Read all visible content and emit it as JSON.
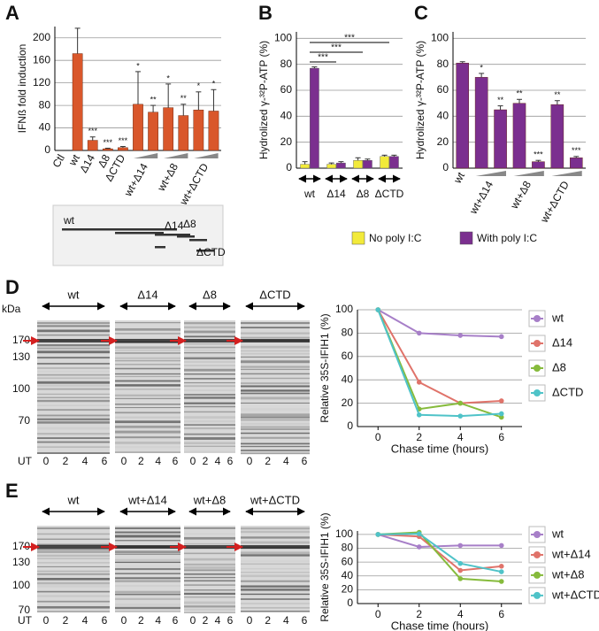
{
  "chart_data": [
    {
      "type": "bar",
      "panel": "A",
      "ylabel": "IFNß fold induction",
      "categories": [
        "Ctl",
        "wt",
        "Δ14",
        "Δ8",
        "ΔCTD",
        "wt+Δ14",
        null,
        "wt+Δ8",
        null,
        "wt+ΔCTD",
        null
      ],
      "values": [
        0,
        172,
        18,
        3,
        5,
        82,
        68,
        76,
        62,
        72,
        70
      ],
      "errors": [
        null,
        45,
        6,
        1,
        2,
        58,
        12,
        42,
        20,
        32,
        38
      ],
      "annotations": [
        null,
        null,
        "***",
        "***",
        "***",
        "*",
        "**",
        "*",
        "**",
        "*",
        "*"
      ],
      "color": "#d9572b",
      "ylim": [
        0,
        220
      ],
      "yticks": [
        0,
        40,
        80,
        120,
        160,
        200
      ],
      "grid": true
    },
    {
      "type": "grouped_bar",
      "panel": "B",
      "ylabel": "Hydrolized γ-³²P-ATP (%)",
      "categories": [
        "wt",
        "Δ14",
        "Δ8",
        "ΔCTD"
      ],
      "series": [
        {
          "name": "No poly I:C",
          "color": "#f2ea3a",
          "values": [
            3,
            3,
            6,
            9
          ],
          "errors": [
            2,
            1,
            2,
            1
          ]
        },
        {
          "name": "With poly I:C",
          "color": "#7b2f8f",
          "values": [
            77,
            4,
            6,
            9
          ],
          "errors": [
            1,
            1,
            1,
            1
          ]
        }
      ],
      "significance": [
        "***",
        "***",
        "***"
      ],
      "ylim": [
        0,
        105
      ],
      "yticks": [
        0,
        20,
        40,
        60,
        80,
        100
      ],
      "grid": true
    },
    {
      "type": "bar",
      "panel": "C",
      "ylabel": "Hydrolized γ-³²P-ATP (%)",
      "categories": [
        "wt",
        "wt+Δ14",
        null,
        "wt+Δ8",
        null,
        "wt+ΔCTD",
        null
      ],
      "values": [
        81,
        70,
        45,
        50,
        5,
        49,
        8
      ],
      "errors": [
        1,
        3,
        3,
        3,
        1,
        3,
        1
      ],
      "annotations": [
        null,
        "*",
        "**",
        "**",
        "***",
        "**",
        "***"
      ],
      "color": "#7b2f8f",
      "ylim": [
        0,
        105
      ],
      "yticks": [
        0,
        20,
        40,
        60,
        80,
        100
      ],
      "grid": true
    },
    {
      "type": "line",
      "panel": "D",
      "ylabel": "Relative 35S-IFIH1 (%)",
      "xlabel": "Chase time (hours)",
      "x": [
        0,
        2,
        4,
        6
      ],
      "series": [
        {
          "name": "wt",
          "color": "#a77fc8",
          "values": [
            100,
            80,
            78,
            77
          ]
        },
        {
          "name": "Δ14",
          "color": "#e0736a",
          "values": [
            100,
            38,
            20,
            22
          ]
        },
        {
          "name": "Δ8",
          "color": "#86bb3c",
          "values": [
            100,
            15,
            20,
            8
          ]
        },
        {
          "name": "ΔCTD",
          "color": "#4fc3c8",
          "values": [
            100,
            10,
            9,
            11
          ]
        }
      ],
      "xlim": [
        -1,
        7
      ],
      "xticks": [
        0,
        2,
        4,
        6
      ],
      "ylim": [
        0,
        100
      ],
      "yticks": [
        0,
        20,
        40,
        60,
        80,
        100
      ],
      "grid": true
    },
    {
      "type": "line",
      "panel": "E",
      "ylabel": "Relative 35S-IFIH1 (%)",
      "xlabel": "Chase time (hours)",
      "x": [
        0,
        2,
        4,
        6
      ],
      "series": [
        {
          "name": "wt",
          "color": "#a77fc8",
          "values": [
            100,
            82,
            84,
            84
          ]
        },
        {
          "name": "wt+Δ14",
          "color": "#e0736a",
          "values": [
            100,
            97,
            48,
            54
          ]
        },
        {
          "name": "wt+Δ8",
          "color": "#86bb3c",
          "values": [
            100,
            103,
            36,
            32
          ]
        },
        {
          "name": "wt+ΔCTD",
          "color": "#4fc3c8",
          "values": [
            100,
            101,
            58,
            46
          ]
        }
      ],
      "xlim": [
        -1,
        7
      ],
      "xticks": [
        0,
        2,
        4,
        6
      ],
      "ylim": [
        0,
        105
      ],
      "yticks": [
        0,
        20,
        40,
        60,
        80,
        100
      ],
      "grid": true
    }
  ],
  "blot": {
    "labels": [
      "wt",
      "Δ14",
      "Δ8",
      "ΔCTD"
    ]
  },
  "gels": [
    {
      "kda": "kDa",
      "markers": [
        170,
        130,
        100,
        70
      ],
      "ut": "UT",
      "groups": [
        {
          "label": "wt",
          "lanes": [
            0,
            2,
            4,
            6
          ]
        },
        {
          "label": "Δ14",
          "lanes": [
            0,
            2,
            4,
            6
          ]
        },
        {
          "label": "Δ8",
          "lanes": [
            0,
            2,
            4,
            6
          ]
        },
        {
          "label": "ΔCTD",
          "lanes": [
            0,
            2,
            4,
            6
          ]
        }
      ]
    },
    {
      "markers": [
        170,
        130,
        100,
        70
      ],
      "ut": "UT",
      "groups": [
        {
          "label": "wt",
          "lanes": [
            0,
            2,
            4,
            6
          ]
        },
        {
          "label": "wt+Δ14",
          "lanes": [
            0,
            2,
            4,
            6
          ]
        },
        {
          "label": "wt+Δ8",
          "lanes": [
            0,
            2,
            4,
            6
          ]
        },
        {
          "label": "wt+ΔCTD",
          "lanes": [
            0,
            2,
            4,
            6
          ]
        }
      ]
    }
  ]
}
